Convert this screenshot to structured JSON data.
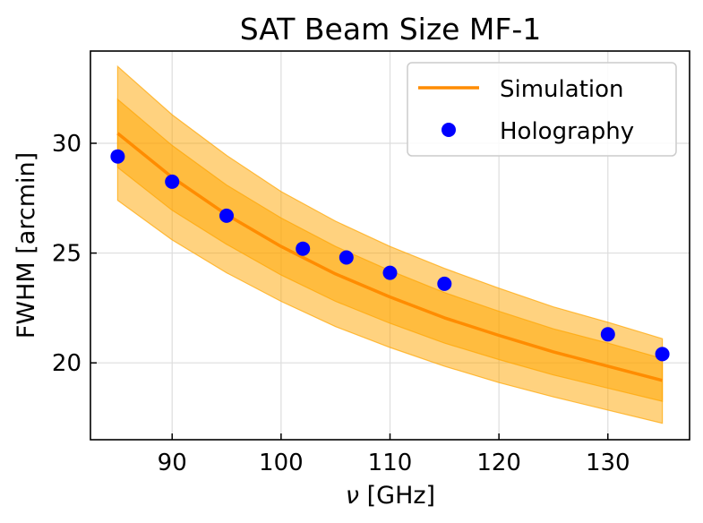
{
  "chart_data": {
    "type": "line",
    "title": "SAT Beam Size MF-1",
    "xlabel_symbol": "ν",
    "xlabel_unit": "[GHz]",
    "ylabel": "FWHM [arcmin]",
    "xlim": [
      82.5,
      137.5
    ],
    "ylim": [
      16.5,
      34.2
    ],
    "xticks": [
      90,
      100,
      110,
      120,
      130
    ],
    "yticks": [
      20,
      25,
      30
    ],
    "grid": true,
    "legend_position": "upper right",
    "series": [
      {
        "name": "Simulation",
        "kind": "line",
        "color": "#ff8c00",
        "x": [
          85,
          90,
          95,
          100,
          105,
          110,
          115,
          120,
          125,
          130,
          135
        ],
        "y": [
          30.45,
          28.45,
          26.75,
          25.3,
          24.05,
          23.0,
          22.05,
          21.25,
          20.5,
          19.85,
          19.2
        ],
        "band_inner": {
          "color": "#ffa500",
          "lower": [
            28.9,
            26.95,
            25.4,
            24.0,
            22.8,
            21.8,
            20.9,
            20.15,
            19.45,
            18.85,
            18.25
          ],
          "upper": [
            32.0,
            29.9,
            28.1,
            26.6,
            25.3,
            24.2,
            23.2,
            22.35,
            21.55,
            20.9,
            20.2
          ]
        },
        "band_outer": {
          "color": "#ffa500",
          "lower": [
            27.4,
            25.6,
            24.1,
            22.8,
            21.65,
            20.7,
            19.85,
            19.1,
            18.45,
            17.85,
            17.25
          ],
          "upper": [
            33.5,
            31.3,
            29.45,
            27.8,
            26.45,
            25.3,
            24.3,
            23.4,
            22.55,
            21.85,
            21.1
          ]
        }
      },
      {
        "name": "Holography",
        "kind": "scatter",
        "color": "#0000ff",
        "x": [
          85,
          90,
          95,
          102,
          106,
          110,
          115,
          130,
          135
        ],
        "y": [
          29.4,
          28.25,
          26.7,
          25.2,
          24.8,
          24.1,
          23.6,
          21.3,
          20.4
        ]
      }
    ]
  }
}
